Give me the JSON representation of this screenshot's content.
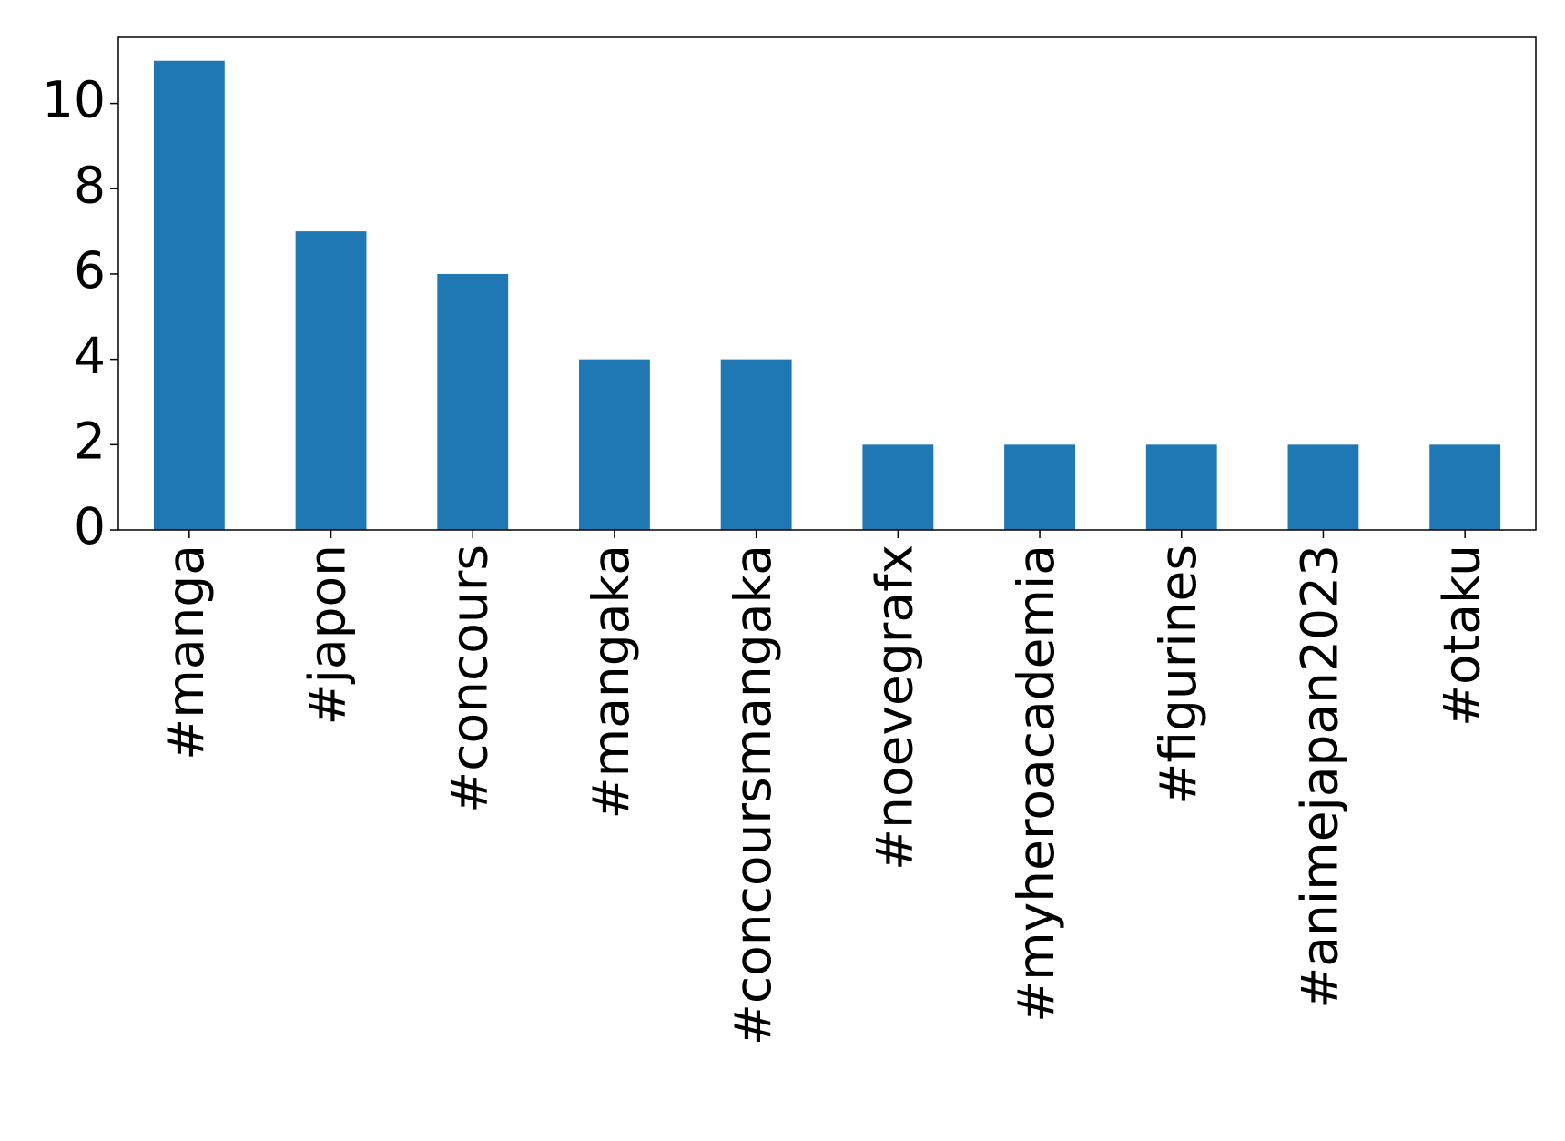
{
  "chart_data": {
    "type": "bar",
    "categories": [
      "#manga",
      "#japon",
      "#concours",
      "#mangaka",
      "#concoursmangaka",
      "#noevegrafx",
      "#myheroacademia",
      "#figurines",
      "#animejapan2023",
      "#otaku"
    ],
    "values": [
      11,
      7,
      6,
      4,
      4,
      2,
      2,
      2,
      2,
      2
    ],
    "color": "#1f77b4",
    "ylim": [
      0,
      11.55
    ],
    "yticks": [
      0,
      2,
      4,
      6,
      8,
      10
    ],
    "grid": false
  }
}
